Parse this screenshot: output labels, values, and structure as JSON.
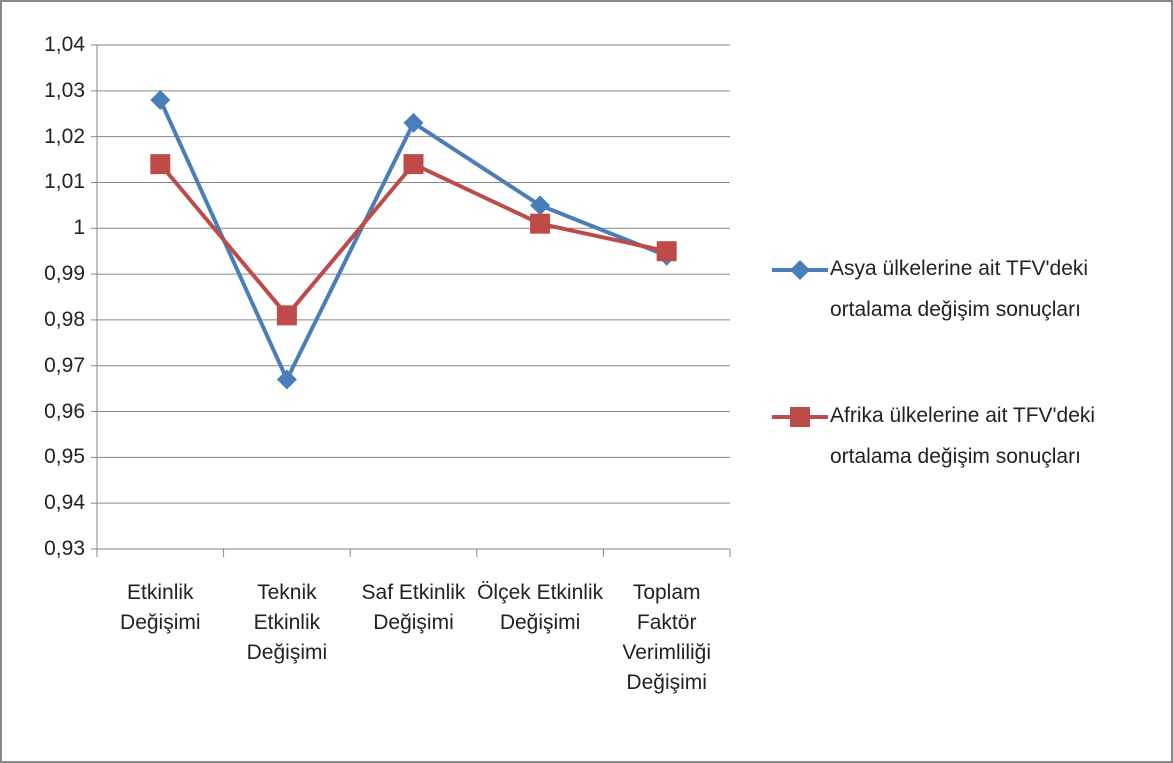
{
  "chart_data": {
    "type": "line",
    "categories": [
      "Etkinlik Değişimi",
      "Teknik Etkinlik Değişimi",
      "Saf Etkinlik Değişimi",
      "Ölçek Etkinlik Değişimi",
      "Toplam Faktör Verimliliği Değişimi"
    ],
    "series": [
      {
        "name": "Asya ülkelerine ait TFV'deki ortalama değişim sonuçları",
        "color": "#4a7ebb",
        "marker": "diamond",
        "values": [
          1.028,
          0.967,
          1.023,
          1.005,
          0.994
        ]
      },
      {
        "name": "Afrika ülkelerine ait TFV'deki ortalama değişim sonuçları",
        "color": "#be4b48",
        "marker": "square",
        "values": [
          1.014,
          0.981,
          1.014,
          1.001,
          0.995
        ]
      }
    ],
    "ylim": [
      0.93,
      1.04
    ],
    "yticks": [
      {
        "value": 0.93,
        "label": "0,93"
      },
      {
        "value": 0.94,
        "label": "0,94"
      },
      {
        "value": 0.95,
        "label": "0,95"
      },
      {
        "value": 0.96,
        "label": "0,96"
      },
      {
        "value": 0.97,
        "label": "0,97"
      },
      {
        "value": 0.98,
        "label": "0,98"
      },
      {
        "value": 0.99,
        "label": "0,99"
      },
      1,
      {
        "value": 1.01,
        "label": "1,01"
      },
      {
        "value": 1.02,
        "label": "1,02"
      },
      {
        "value": 1.03,
        "label": "1,03"
      },
      {
        "value": 1.04,
        "label": "1,04"
      }
    ],
    "grid": true,
    "legend": "right"
  }
}
